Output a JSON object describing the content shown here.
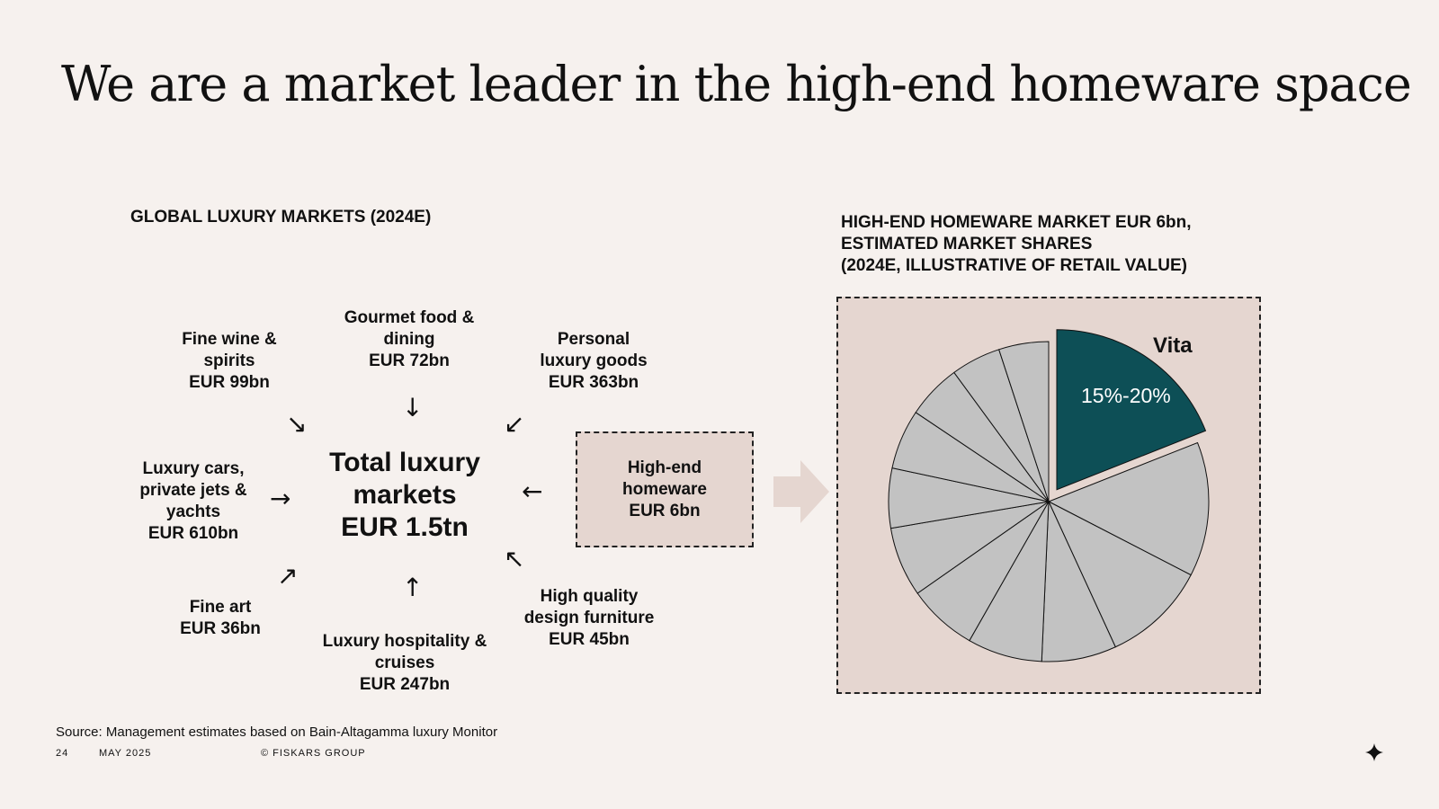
{
  "title": "We are a market leader in the high-end homeware space",
  "left_section": {
    "heading": "GLOBAL LUXURY MARKETS (2024E)",
    "center": [
      "Total luxury",
      "markets",
      "EUR 1.5tn"
    ],
    "markets": {
      "wine": [
        "Fine wine &",
        "spirits",
        "EUR 99bn"
      ],
      "gourmet": [
        "Gourmet food &",
        "dining",
        "EUR 72bn"
      ],
      "personal": [
        "Personal",
        "luxury goods",
        "EUR 363bn"
      ],
      "cars": [
        "Luxury cars,",
        "private jets &",
        "yachts",
        "EUR 610bn"
      ],
      "homeware": [
        "High-end",
        "homeware",
        "EUR 6bn"
      ],
      "art": [
        "Fine art",
        "EUR 36bn"
      ],
      "hospitality": [
        "Luxury hospitality &",
        "cruises",
        "EUR 247bn"
      ],
      "furniture": [
        "High quality",
        "design furniture",
        "EUR 45bn"
      ]
    },
    "arrows": {
      "wine": "↘",
      "gourmet": "↓",
      "personal": "↙",
      "cars": "→",
      "homeware": "←",
      "art": "↗",
      "hospitality": "↑",
      "furniture": "↖"
    }
  },
  "right_section": {
    "heading": [
      "HIGH-END HOMEWARE MARKET EUR 6bn,",
      "ESTIMATED MARKET SHARES",
      "(2024E, ILLUSTRATIVE OF RETAIL VALUE)"
    ]
  },
  "chart_data": {
    "type": "pie",
    "highlight": {
      "label": "Vita",
      "value_label": "15%-20%",
      "share": 0.19
    },
    "other_slice_count": 11,
    "other_shares": [
      0.135,
      0.105,
      0.075,
      0.075,
      0.07,
      0.07,
      0.06,
      0.06,
      0.055,
      0.05,
      0.05
    ],
    "colors": {
      "highlight": "#0d4f56",
      "other": "#c2c2c2",
      "background": "#e5d6d0"
    }
  },
  "footer": {
    "source": "Source: Management estimates based on Bain-Altagamma luxury Monitor",
    "page": "24",
    "date": "MAY 2025",
    "company": "© FISKARS GROUP"
  }
}
